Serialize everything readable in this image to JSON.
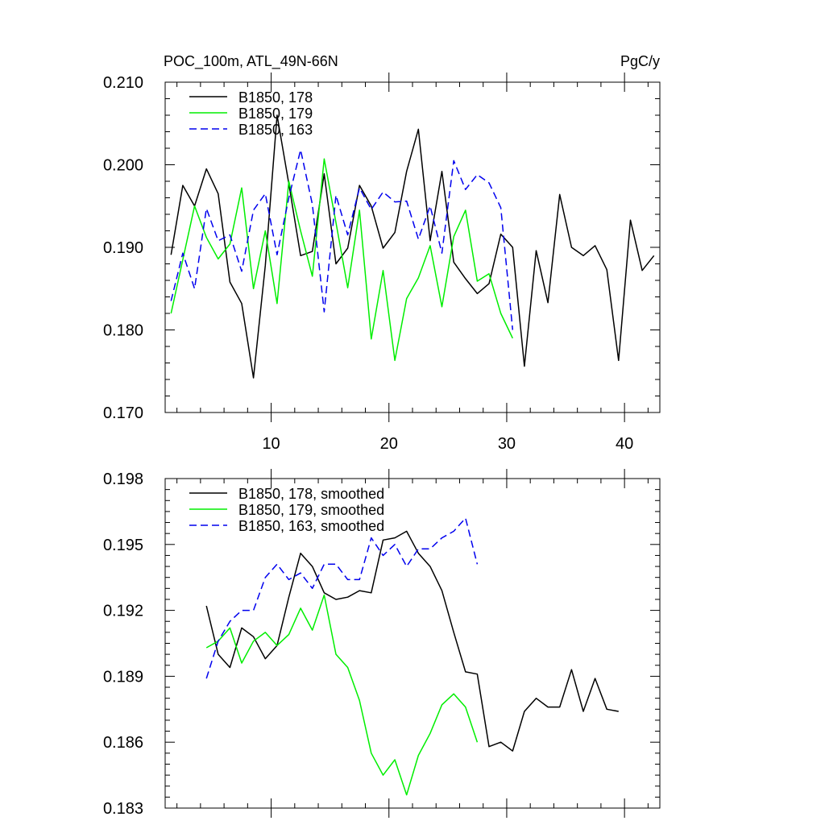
{
  "figure": {
    "title_left": "POC_100m, ATL_49N-66N",
    "title_right": "PgC/y"
  },
  "chart_data": [
    {
      "type": "line",
      "title": "POC_100m, ATL_49N-66N",
      "units": "PgC/y",
      "xlim": [
        1,
        43
      ],
      "ylim": [
        0.17,
        0.21
      ],
      "x_ticks": [
        10,
        20,
        30,
        40
      ],
      "x_tick_labels": [
        "10",
        "20",
        "30",
        "40"
      ],
      "y_ticks": [
        0.17,
        0.18,
        0.19,
        0.2,
        0.21
      ],
      "y_tick_labels": [
        "0.170",
        "0.180",
        "0.190",
        "0.200",
        "0.210"
      ],
      "legend": "top-left",
      "series": [
        {
          "name": "B1850, 178",
          "color": "#000000",
          "dash": "solid",
          "x": [
            1.5,
            2.5,
            3.5,
            4.5,
            5.5,
            6.5,
            7.5,
            8.5,
            9.5,
            10.5,
            11.5,
            12.5,
            13.5,
            14.5,
            15.5,
            16.5,
            17.5,
            18.5,
            19.5,
            20.5,
            21.5,
            22.5,
            23.5,
            24.5,
            25.5,
            26.5,
            27.5,
            28.5,
            29.5,
            30.5,
            31.5,
            32.5,
            33.5,
            34.5,
            35.5,
            36.5,
            37.5,
            38.5,
            39.5,
            40.5,
            41.5,
            42.5
          ],
          "y": [
            0.1891,
            0.1975,
            0.195,
            0.1995,
            0.1965,
            0.1858,
            0.1832,
            0.1742,
            0.1878,
            0.206,
            0.1977,
            0.189,
            0.1895,
            0.1989,
            0.188,
            0.1899,
            0.1975,
            0.195,
            0.1899,
            0.1918,
            0.1992,
            0.2043,
            0.1908,
            0.1992,
            0.1882,
            0.1862,
            0.1844,
            0.1856,
            0.1916,
            0.19,
            0.1756,
            0.1896,
            0.1833,
            0.1964,
            0.19,
            0.189,
            0.1902,
            0.1873,
            0.1763,
            0.1933,
            0.1872,
            0.189
          ]
        },
        {
          "name": "B1850, 179",
          "color": "#00ee00",
          "dash": "solid",
          "x": [
            1.5,
            2.5,
            3.5,
            4.5,
            5.5,
            6.5,
            7.5,
            8.5,
            9.5,
            10.5,
            11.5,
            12.5,
            13.5,
            14.5,
            15.5,
            16.5,
            17.5,
            18.5,
            19.5,
            20.5,
            21.5,
            22.5,
            23.5,
            24.5,
            25.5,
            26.5,
            27.5,
            28.5,
            29.5,
            30.5
          ],
          "y": [
            0.182,
            0.1885,
            0.195,
            0.1912,
            0.1886,
            0.1904,
            0.1972,
            0.185,
            0.192,
            0.1832,
            0.198,
            0.192,
            0.1865,
            0.2007,
            0.193,
            0.1851,
            0.1945,
            0.1789,
            0.1872,
            0.1763,
            0.1838,
            0.1863,
            0.1902,
            0.1828,
            0.1913,
            0.1945,
            0.1859,
            0.1868,
            0.182,
            0.179
          ]
        },
        {
          "name": "B1850, 163",
          "color": "#0000ee",
          "dash": "dashed",
          "x": [
            1.5,
            2.5,
            3.5,
            4.5,
            5.5,
            6.5,
            7.5,
            8.5,
            9.5,
            10.5,
            11.5,
            12.5,
            13.5,
            14.5,
            15.5,
            16.5,
            17.5,
            18.5,
            19.5,
            20.5,
            21.5,
            22.5,
            23.5,
            24.5,
            25.5,
            26.5,
            27.5,
            28.5,
            29.5,
            30.5
          ],
          "y": [
            0.1835,
            0.1893,
            0.185,
            0.1947,
            0.1908,
            0.1915,
            0.1871,
            0.1945,
            0.1965,
            0.1891,
            0.196,
            0.2018,
            0.1952,
            0.1822,
            0.1963,
            0.1915,
            0.1972,
            0.1946,
            0.1967,
            0.1955,
            0.1956,
            0.191,
            0.195,
            0.1893,
            0.2005,
            0.197,
            0.1988,
            0.1978,
            0.1948,
            0.18
          ]
        }
      ]
    },
    {
      "type": "line",
      "xlim": [
        1,
        43
      ],
      "ylim": [
        0.183,
        0.198
      ],
      "x_ticks": [
        10,
        20,
        30,
        40
      ],
      "y_ticks": [
        0.183,
        0.186,
        0.189,
        0.192,
        0.195,
        0.198
      ],
      "y_tick_labels": [
        "0.183",
        "0.186",
        "0.189",
        "0.192",
        "0.195",
        "0.198"
      ],
      "legend": "top-left",
      "series": [
        {
          "name": "B1850, 178, smoothed",
          "color": "#000000",
          "dash": "solid",
          "x": [
            4.5,
            5.5,
            6.5,
            7.5,
            8.5,
            9.5,
            10.5,
            11.5,
            12.5,
            13.5,
            14.5,
            15.5,
            16.5,
            17.5,
            18.5,
            19.5,
            20.5,
            21.5,
            22.5,
            23.5,
            24.5,
            25.5,
            26.5,
            27.5,
            28.5,
            29.5,
            30.5,
            31.5,
            32.5,
            33.5,
            34.5,
            35.5,
            36.5,
            37.5,
            38.5,
            39.5
          ],
          "y": [
            0.1922,
            0.19,
            0.1894,
            0.1912,
            0.1908,
            0.1898,
            0.1904,
            0.1926,
            0.1946,
            0.194,
            0.1928,
            0.1925,
            0.1926,
            0.1929,
            0.1928,
            0.1952,
            0.1953,
            0.1956,
            0.1946,
            0.194,
            0.1929,
            0.191,
            0.1892,
            0.1891,
            0.1858,
            0.186,
            0.1856,
            0.1874,
            0.188,
            0.1876,
            0.1876,
            0.1893,
            0.1874,
            0.1889,
            0.1875,
            0.1874
          ]
        },
        {
          "name": "B1850, 179, smoothed",
          "color": "#00ee00",
          "dash": "solid",
          "x": [
            4.5,
            5.5,
            6.5,
            7.5,
            8.5,
            9.5,
            10.5,
            11.5,
            12.5,
            13.5,
            14.5,
            15.5,
            16.5,
            17.5,
            18.5,
            19.5,
            20.5,
            21.5,
            22.5,
            23.5,
            24.5,
            25.5,
            26.5,
            27.5
          ],
          "y": [
            0.1903,
            0.1906,
            0.1912,
            0.1896,
            0.1906,
            0.191,
            0.1904,
            0.1909,
            0.1921,
            0.1911,
            0.1927,
            0.19,
            0.1894,
            0.1879,
            0.1855,
            0.1845,
            0.1852,
            0.1836,
            0.1854,
            0.1864,
            0.1877,
            0.1882,
            0.1876,
            0.186
          ]
        },
        {
          "name": "B1850, 163, smoothed",
          "color": "#0000ee",
          "dash": "dashed",
          "x": [
            4.5,
            5.5,
            6.5,
            7.5,
            8.5,
            9.5,
            10.5,
            11.5,
            12.5,
            13.5,
            14.5,
            15.5,
            16.5,
            17.5,
            18.5,
            19.5,
            20.5,
            21.5,
            22.5,
            23.5,
            24.5,
            25.5,
            26.5,
            27.5
          ],
          "y": [
            0.1889,
            0.1906,
            0.1915,
            0.192,
            0.192,
            0.1935,
            0.1941,
            0.1934,
            0.1937,
            0.193,
            0.1941,
            0.1941,
            0.1934,
            0.1934,
            0.1953,
            0.1945,
            0.195,
            0.194,
            0.1948,
            0.1948,
            0.1953,
            0.1956,
            0.1962,
            0.1941
          ]
        }
      ]
    }
  ]
}
